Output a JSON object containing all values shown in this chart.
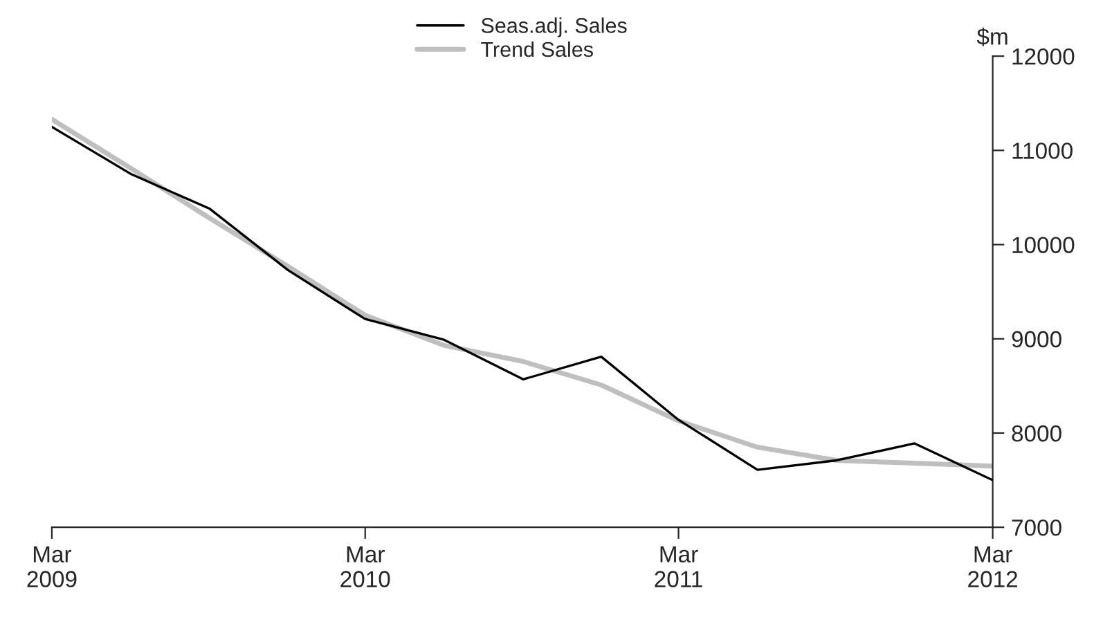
{
  "chart_data": {
    "type": "line",
    "ylabel": "$m",
    "x": [
      "2009-03",
      "2009-06",
      "2009-09",
      "2009-12",
      "2010-03",
      "2010-06",
      "2010-09",
      "2010-12",
      "2011-03",
      "2011-06",
      "2011-09",
      "2011-12",
      "2012-03"
    ],
    "series": [
      {
        "name": "Seas.adj. Sales",
        "color": "#000000",
        "values": [
          11250,
          10750,
          10380,
          9730,
          9210,
          8990,
          8570,
          8810,
          8140,
          7610,
          7710,
          7890,
          7500
        ]
      },
      {
        "name": "Trend Sales",
        "color": "#bfbfbf",
        "values": [
          11330,
          10810,
          10280,
          9770,
          9250,
          8930,
          8760,
          8510,
          8130,
          7850,
          7710,
          7680,
          7650
        ]
      }
    ],
    "xlim": [
      "2009-03",
      "2012-03"
    ],
    "xticks": [
      {
        "value": "2009-03",
        "label": "Mar\n2009"
      },
      {
        "value": "2010-03",
        "label": "Mar\n2010"
      },
      {
        "value": "2011-03",
        "label": "Mar\n2011"
      },
      {
        "value": "2012-03",
        "label": "Mar\n2012"
      }
    ],
    "ylim": [
      7000,
      12000
    ],
    "yticks": [
      7000,
      8000,
      9000,
      10000,
      11000,
      12000
    ],
    "grid": false,
    "legend": "top",
    "marker": "none",
    "line_style": "solid"
  }
}
